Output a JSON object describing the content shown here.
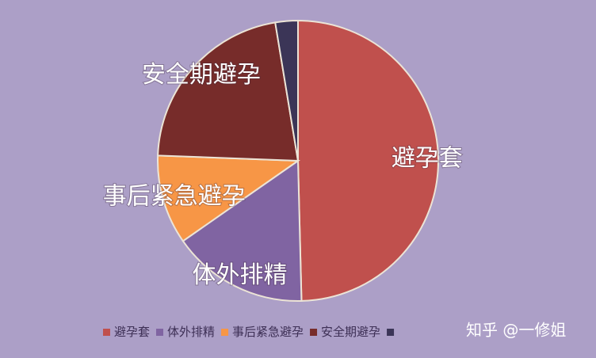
{
  "chart_data": {
    "type": "pie",
    "categories": [
      "避孕套",
      "体外排精",
      "事后紧急避孕",
      "安全期避孕",
      null
    ],
    "values": [
      49.6,
      15.7,
      10.3,
      21.8,
      2.6
    ],
    "colors": [
      "#c0504d",
      "#8064a2",
      "#f79646",
      "#772c2a",
      "#3b3557"
    ],
    "legend": "bottom"
  },
  "watermark": "知乎 @一修姐"
}
